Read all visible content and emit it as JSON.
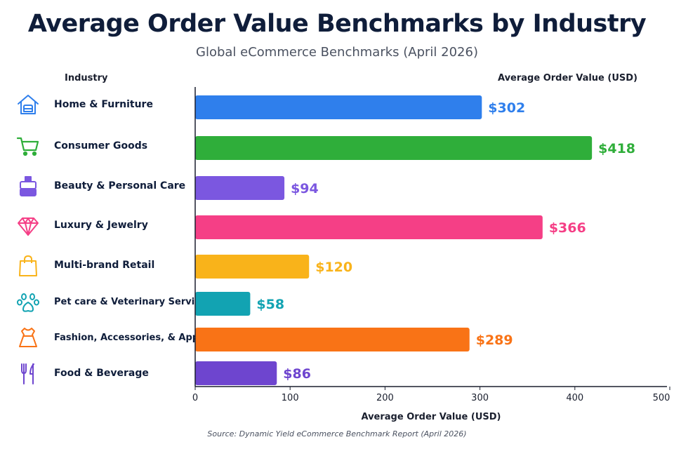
{
  "title": "Average Order Value Benchmarks by Industry",
  "subtitle": "Global eCommerce Benchmarks (April 2026)",
  "headers": {
    "industry": "Industry",
    "value": "Average Order Value (USD)"
  },
  "source": "Source: Dynamic Yield eCommerce Benchmark Report (April 2026)",
  "chart_data": {
    "type": "bar",
    "orientation": "horizontal",
    "title": "Average Order Value Benchmarks by Industry",
    "subtitle": "Global eCommerce Benchmarks (April 2026)",
    "xlabel": "Average Order Value (USD)",
    "ylabel": "Industry",
    "xlim": [
      0,
      500
    ],
    "xticks": [
      "0",
      "100",
      "200",
      "300",
      "400",
      "500"
    ],
    "grid": false,
    "categories": [
      "Home & Furniture",
      "Consumer Goods",
      "Beauty & Personal Care",
      "Luxury & Jewelry",
      "Multi-brand Retail",
      "Pet care & Veterinary Services",
      "Fashion, Accessories, & Apparel",
      "Food & Beverage"
    ],
    "values": [
      302,
      418,
      94,
      366,
      120,
      58,
      289,
      86
    ],
    "value_labels": [
      "$302",
      "$418",
      "$94",
      "$366",
      "$120",
      "$58",
      "$289",
      "$86"
    ],
    "colors": [
      "#2f7fec",
      "#2fae3a",
      "#7b57e0",
      "#f53f86",
      "#f9b31a",
      "#12a3b2",
      "#f97316",
      "#6e45cf"
    ],
    "icons": [
      "home-icon",
      "shopping-cart-icon",
      "cosmetics-icon",
      "diamond-icon",
      "shopping-bag-icon",
      "paw-icon",
      "dress-icon",
      "fork-knife-icon"
    ]
  }
}
